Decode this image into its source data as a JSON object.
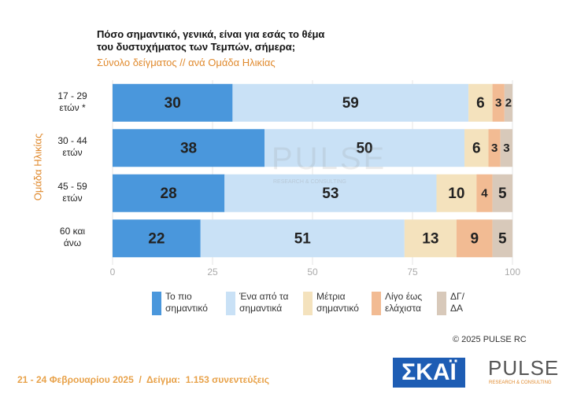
{
  "chart_data": {
    "type": "stacked-bar-horizontal",
    "title": "Πόσο σημαντικό, γενικά, είναι για εσάς το θέμα\nτου δυστυχήματος των Τεμπών, σήμερα;",
    "subtitle": "Σύνολο δείγματος // ανά Ομάδα Ηλικίας",
    "y_axis_label": "Ομάδα Ηλικίας",
    "categories": [
      "17 - 29\nετών *",
      "30 - 44\nετών",
      "45 - 59\nετών",
      "60 και\nάνω"
    ],
    "series": [
      {
        "name": "Το πιο\nσημαντικό",
        "color": "#4a97dc",
        "values": [
          30,
          38,
          28,
          22
        ]
      },
      {
        "name": "Ένα από τα\nσημαντικά",
        "color": "#c9e1f6",
        "values": [
          59,
          50,
          53,
          51
        ]
      },
      {
        "name": "Μέτρια\nσημαντικό",
        "color": "#f4e2bd",
        "values": [
          6,
          6,
          10,
          13
        ]
      },
      {
        "name": "Λίγο έως\nελάχιστα",
        "color": "#f2bb93",
        "values": [
          3,
          3,
          4,
          9
        ]
      },
      {
        "name": "ΔΓ/\nΔΑ",
        "color": "#d8c9ba",
        "values": [
          2,
          3,
          5,
          5
        ]
      }
    ],
    "xlim": [
      0,
      100
    ],
    "xticks": [
      0,
      25,
      50,
      75,
      100
    ],
    "grid": true,
    "watermark": "PULSE",
    "watermark_sub": "RESEARCH & CONSULTING",
    "copyright": "© 2025 PULSE RC",
    "footer": "21 - 24 Φεβρουαρίου 2025  /  Δείγμα:  1.153 συνεντεύξεις",
    "logo_left": "ΣΚΑΪ",
    "logo_right": "PULSE",
    "logo_right_sub": "RESEARCH & CONSULTING"
  }
}
